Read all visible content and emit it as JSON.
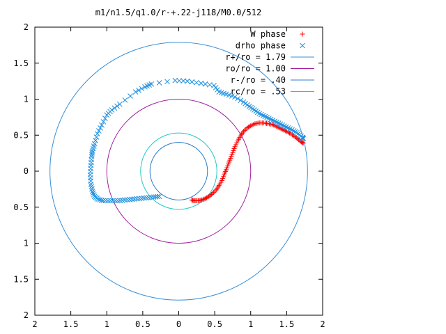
{
  "chart_data": {
    "type": "scatter",
    "title": "m1/n1.5/q1.0/r-+.22-j118/M0.0/512",
    "xlabel": "",
    "ylabel": "",
    "xlim": [
      -2,
      2
    ],
    "ylim": [
      -2,
      2
    ],
    "x_ticks": [
      {
        "value": -2,
        "label": "2"
      },
      {
        "value": -1.5,
        "label": "1.5"
      },
      {
        "value": -1,
        "label": "1"
      },
      {
        "value": -0.5,
        "label": "0.5"
      },
      {
        "value": 0,
        "label": "0"
      },
      {
        "value": 0.5,
        "label": "0.5"
      },
      {
        "value": 1,
        "label": "1"
      },
      {
        "value": 1.5,
        "label": "1.5"
      },
      {
        "value": 2,
        "label": "2"
      }
    ],
    "y_ticks": [
      {
        "value": 2,
        "label": "2"
      },
      {
        "value": 1.5,
        "label": "1.5"
      },
      {
        "value": 1,
        "label": "1"
      },
      {
        "value": 0.5,
        "label": "0.5"
      },
      {
        "value": 0,
        "label": "0"
      },
      {
        "value": -0.5,
        "label": "0.5"
      },
      {
        "value": -1,
        "label": "1"
      },
      {
        "value": -1.5,
        "label": "1.5"
      },
      {
        "value": -2,
        "label": "2"
      }
    ],
    "grid": false,
    "legend_position": "top-right",
    "series": [
      {
        "name": "W phase",
        "marker": "plus",
        "color": "#ff0000",
        "points": [
          [
            0.18,
            -0.4
          ],
          [
            0.22,
            -0.41
          ],
          [
            0.27,
            -0.41
          ],
          [
            0.32,
            -0.4
          ],
          [
            0.37,
            -0.38
          ],
          [
            0.42,
            -0.35
          ],
          [
            0.47,
            -0.31
          ],
          [
            0.52,
            -0.26
          ],
          [
            0.56,
            -0.2
          ],
          [
            0.6,
            -0.13
          ],
          [
            0.63,
            -0.05
          ],
          [
            0.66,
            0.02
          ],
          [
            0.69,
            0.1
          ],
          [
            0.72,
            0.18
          ],
          [
            0.75,
            0.26
          ],
          [
            0.78,
            0.34
          ],
          [
            0.82,
            0.42
          ],
          [
            0.86,
            0.49
          ],
          [
            0.9,
            0.55
          ],
          [
            0.95,
            0.6
          ],
          [
            1.0,
            0.63
          ],
          [
            1.06,
            0.66
          ],
          [
            1.12,
            0.67
          ],
          [
            1.18,
            0.67
          ],
          [
            1.24,
            0.66
          ],
          [
            1.3,
            0.65
          ],
          [
            1.36,
            0.62
          ],
          [
            1.42,
            0.59
          ],
          [
            1.48,
            0.56
          ],
          [
            1.54,
            0.53
          ],
          [
            1.6,
            0.49
          ],
          [
            1.65,
            0.45
          ],
          [
            1.7,
            0.41
          ],
          [
            1.73,
            0.39
          ]
        ]
      },
      {
        "name": "drho phase",
        "marker": "cross",
        "color": "#1f8fe0",
        "points": [
          [
            -0.27,
            -0.35
          ],
          [
            -0.35,
            -0.36
          ],
          [
            -0.45,
            -0.37
          ],
          [
            -0.55,
            -0.38
          ],
          [
            -0.65,
            -0.39
          ],
          [
            -0.75,
            -0.4
          ],
          [
            -0.85,
            -0.41
          ],
          [
            -0.95,
            -0.41
          ],
          [
            -1.05,
            -0.41
          ],
          [
            -1.12,
            -0.39
          ],
          [
            -1.17,
            -0.35
          ],
          [
            -1.2,
            -0.28
          ],
          [
            -1.22,
            -0.18
          ],
          [
            -1.23,
            -0.05
          ],
          [
            -1.22,
            0.08
          ],
          [
            -1.21,
            0.2
          ],
          [
            -1.2,
            0.28
          ],
          [
            -1.17,
            0.38
          ],
          [
            -1.13,
            0.52
          ],
          [
            -1.07,
            0.64
          ],
          [
            -1.0,
            0.78
          ],
          [
            -0.93,
            0.85
          ],
          [
            -0.82,
            0.93
          ],
          [
            -0.6,
            1.1
          ],
          [
            -0.47,
            1.17
          ],
          [
            -0.38,
            1.21
          ],
          [
            -0.05,
            1.26
          ],
          [
            0.12,
            1.25
          ],
          [
            0.31,
            1.22
          ],
          [
            0.49,
            1.19
          ],
          [
            0.56,
            1.1
          ],
          [
            0.66,
            1.07
          ],
          [
            0.78,
            1.03
          ],
          [
            0.9,
            0.96
          ],
          [
            0.98,
            0.9
          ],
          [
            1.05,
            0.85
          ],
          [
            1.12,
            0.8
          ],
          [
            1.2,
            0.76
          ],
          [
            1.28,
            0.72
          ],
          [
            1.36,
            0.68
          ],
          [
            1.44,
            0.64
          ],
          [
            1.52,
            0.6
          ],
          [
            1.6,
            0.56
          ],
          [
            1.66,
            0.52
          ],
          [
            1.72,
            0.47
          ],
          [
            1.73,
            0.45
          ]
        ]
      }
    ],
    "circles": [
      {
        "name": "r+/ro = 1.79",
        "radius": 1.79,
        "color": "#3a8fd6"
      },
      {
        "name": "ro/ro = 1.00",
        "radius": 1.0,
        "color": "#a020a0"
      },
      {
        "name": "r-/ro = .40",
        "radius": 0.4,
        "color": "#2b7ccc"
      },
      {
        "name": "rc/ro = .53",
        "radius": 0.53,
        "color": "#20c8c8"
      }
    ]
  }
}
